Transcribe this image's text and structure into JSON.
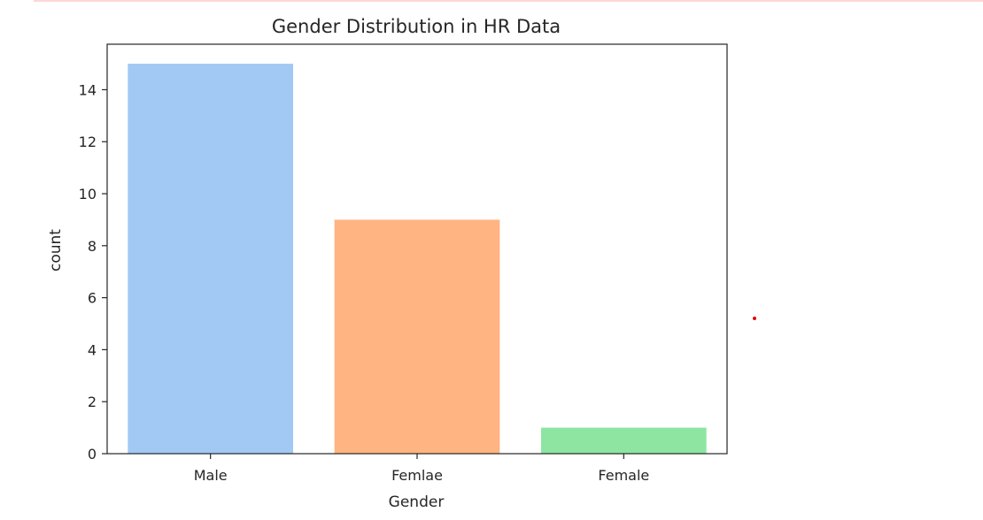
{
  "chart_data": {
    "type": "bar",
    "title": "Gender Distribution in HR Data",
    "xlabel": "Gender",
    "ylabel": "count",
    "categories": [
      "Male",
      "Femlae",
      "Female"
    ],
    "values": [
      15,
      9,
      1
    ],
    "colors": [
      "#a1c9f4",
      "#ffb482",
      "#8de5a1"
    ],
    "ylim": [
      0,
      15.75
    ],
    "yticks": [
      0,
      2,
      4,
      6,
      8,
      10,
      12,
      14
    ],
    "grid": false,
    "legend": "none"
  },
  "decorations": {
    "top_strip_color": "#ffd6d6",
    "marker_dot_color": "#e00000"
  }
}
